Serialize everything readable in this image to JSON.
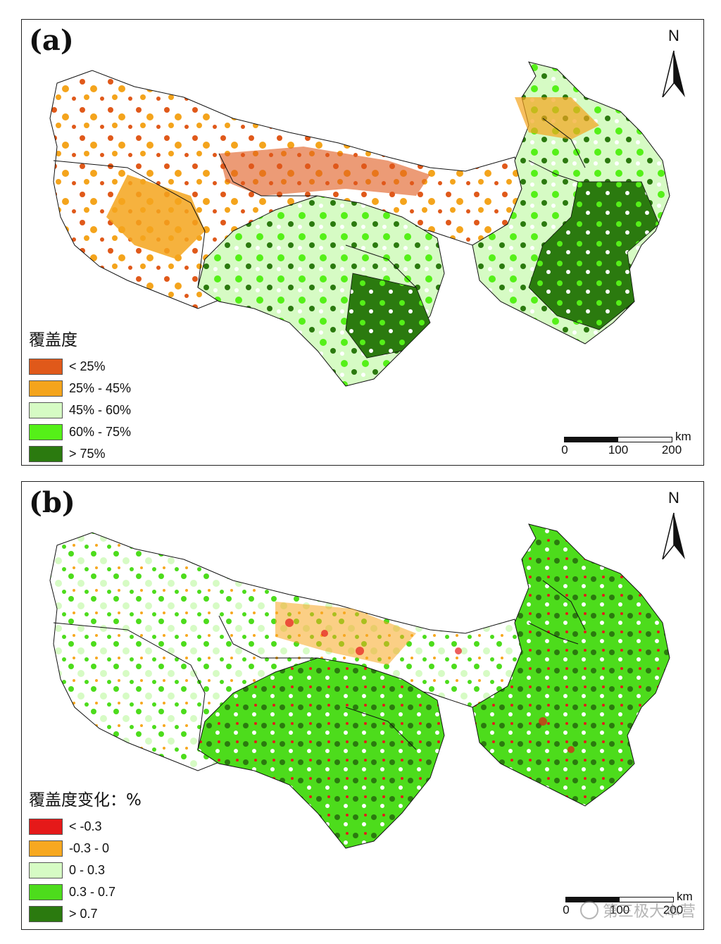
{
  "panels": [
    {
      "label": "(a)",
      "legend_title": "覆盖度",
      "legend": [
        {
          "label": "< 25%",
          "color": "#e0591a"
        },
        {
          "label": "25% - 45%",
          "color": "#f4a41c"
        },
        {
          "label": "45% - 60%",
          "color": "#d6fbc4"
        },
        {
          "label": "60% - 75%",
          "color": "#55f018"
        },
        {
          "label": "> 75%",
          "color": "#2b7a0f"
        }
      ],
      "north": "N",
      "scale": {
        "unit": "km",
        "ticks": [
          "0",
          "100",
          "200"
        ]
      }
    },
    {
      "label": "(b)",
      "legend_title": "覆盖度变化：%",
      "legend": [
        {
          "label": "< -0.3",
          "color": "#e51919"
        },
        {
          "label": "-0.3 - 0",
          "color": "#f7a820"
        },
        {
          "label": "0 - 0.3",
          "color": "#d6fbc4"
        },
        {
          "label": "0.3 - 0.7",
          "color": "#4ddc1c"
        },
        {
          "label": "> 0.7",
          "color": "#2b7a0f"
        }
      ],
      "north": "N",
      "scale": {
        "unit": "km",
        "ticks": [
          "0",
          "100",
          "200"
        ]
      }
    }
  ],
  "watermark": "第三极大本营"
}
